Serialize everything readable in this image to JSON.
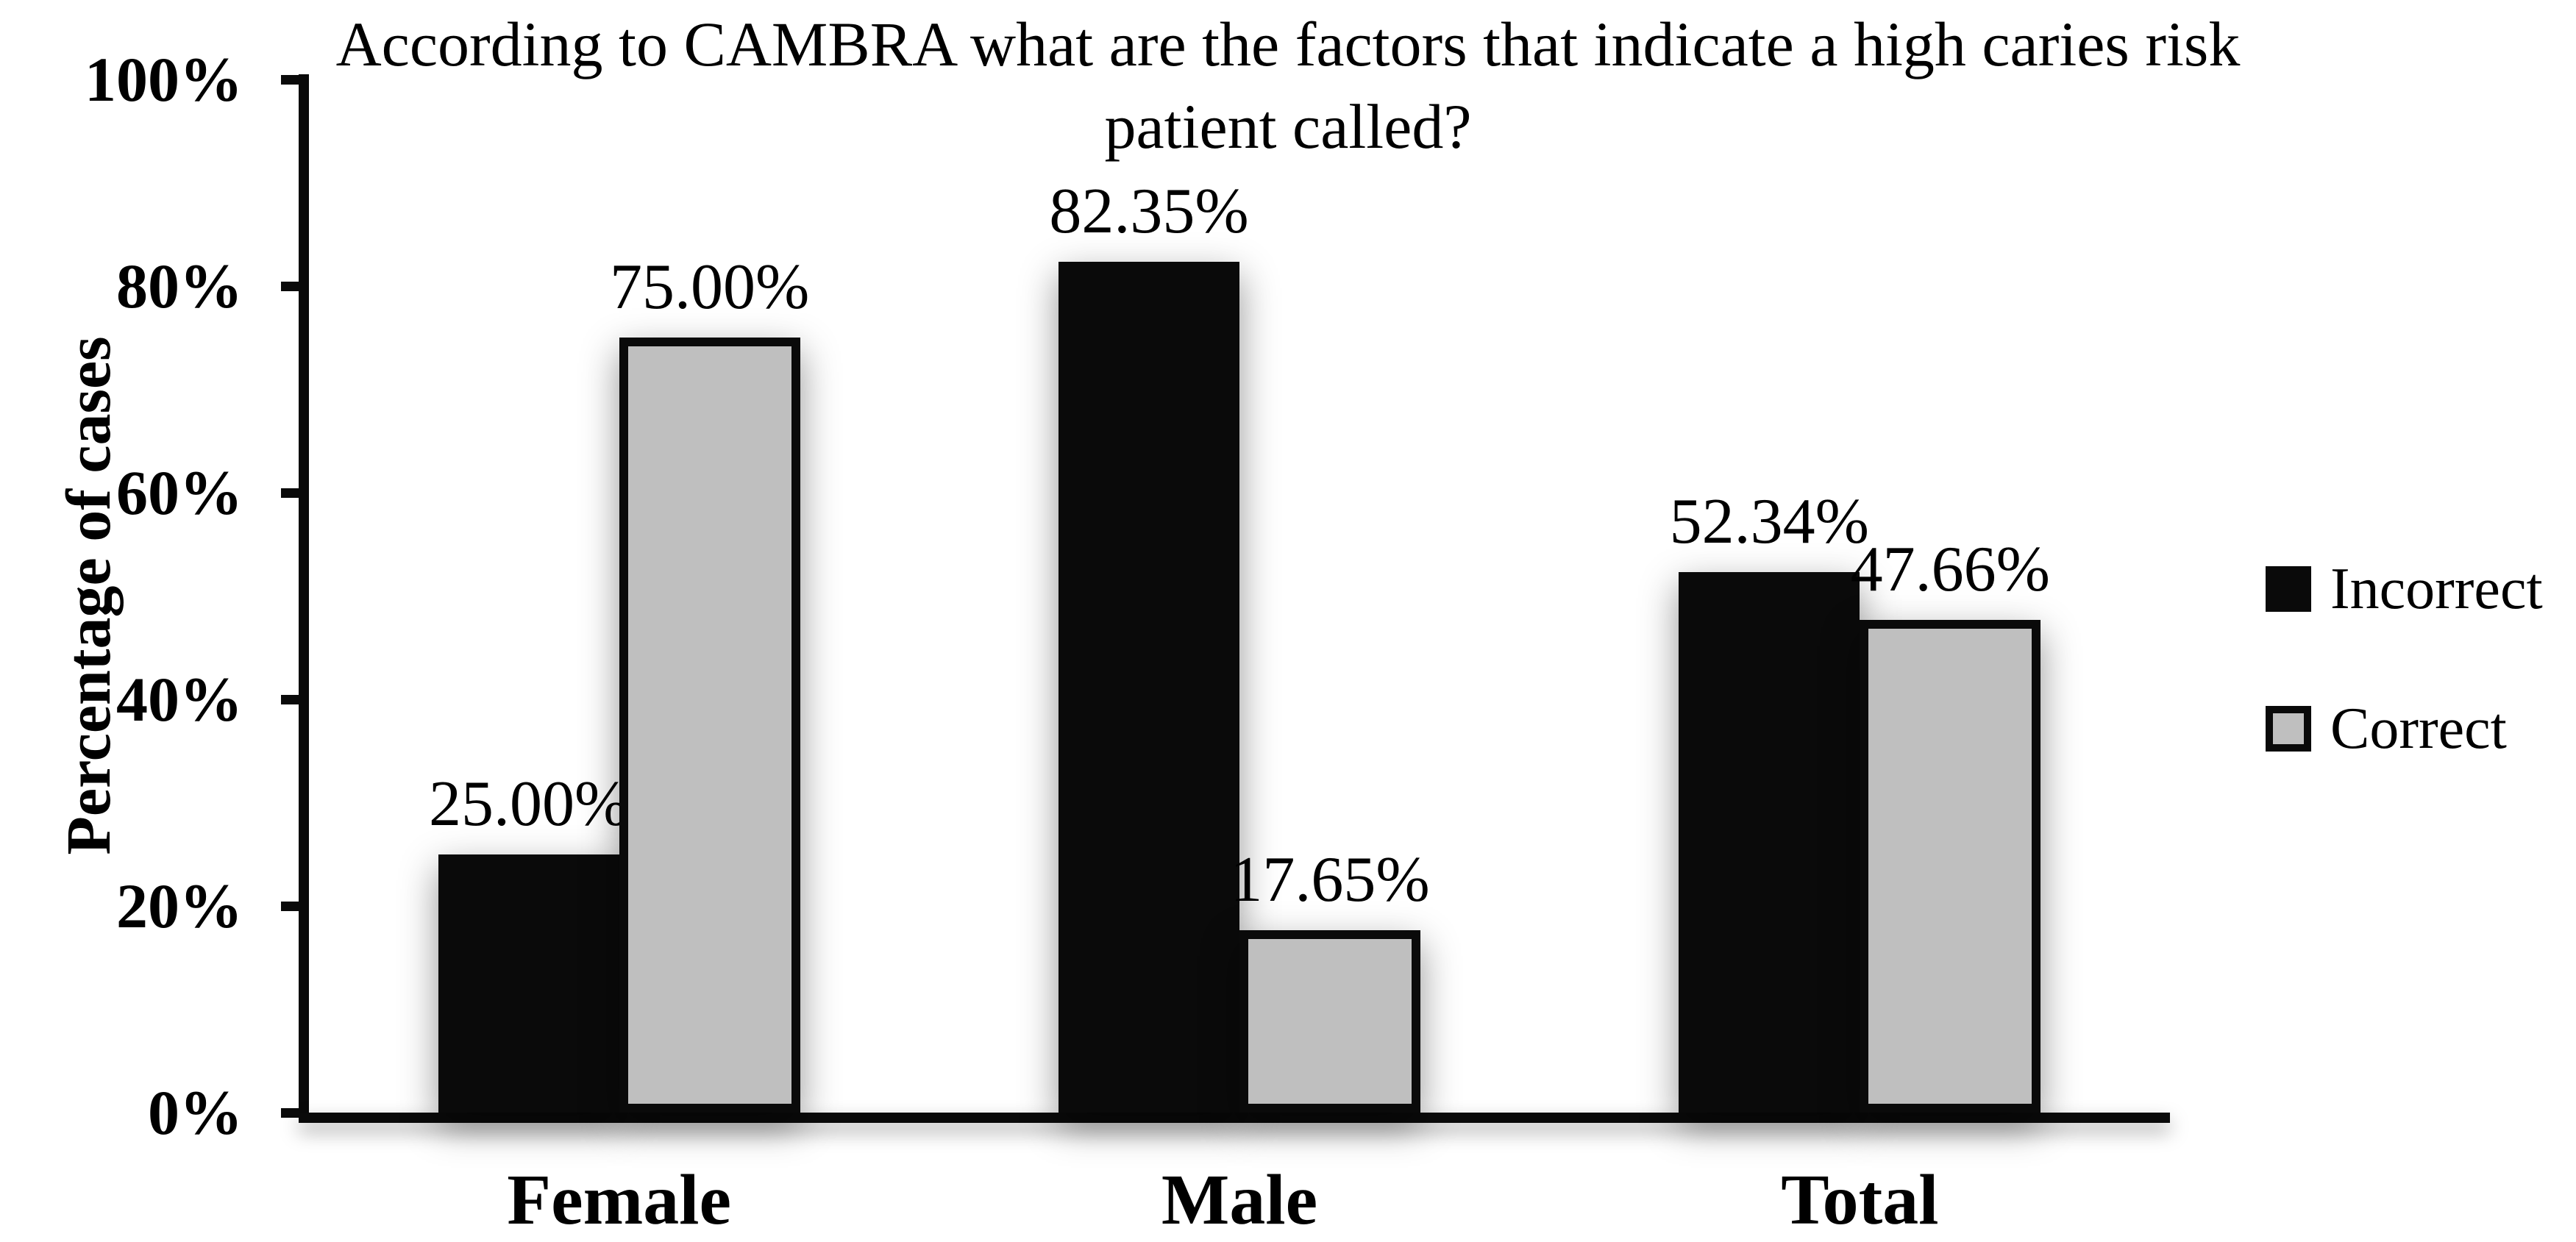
{
  "figure": {
    "background_color": "#ffffff",
    "text_color": "#000000"
  },
  "chart_data": {
    "type": "bar",
    "title": "According to CAMBRA what are the factors that indicate a high caries risk patient called?",
    "title_lines": [
      "According to CAMBRA what are the factors that indicate a high caries risk",
      "patient called?"
    ],
    "ylabel": "Percentage of cases",
    "xlabel": "",
    "categories": [
      "Female",
      "Male",
      "Total"
    ],
    "series": [
      {
        "name": "Incorrect",
        "color": "#0a0a0a",
        "values": [
          25.0,
          82.35,
          52.34
        ],
        "labels": [
          "25.00%",
          "82.35%",
          "52.34%"
        ]
      },
      {
        "name": "Correct",
        "color": "#bfbfbf",
        "values": [
          75.0,
          17.65,
          47.66
        ],
        "labels": [
          "75.00%",
          "17.65%",
          "47.66%"
        ]
      }
    ],
    "ylim": [
      0,
      100
    ],
    "yticks": [
      0,
      20,
      40,
      60,
      80,
      100
    ],
    "ytick_labels": [
      "0%",
      "20%",
      "40%",
      "60%",
      "80%",
      "100%"
    ],
    "grid": "off",
    "legend_position": "right",
    "bar_outline_color": "#0a0a0a"
  }
}
